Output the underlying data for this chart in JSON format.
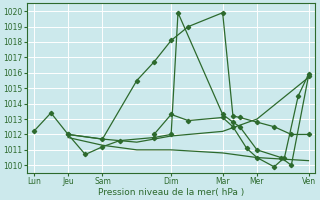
{
  "bg_color": "#cce9ec",
  "grid_color": "#ffffff",
  "line_color": "#2d6a2d",
  "xlabel": "Pression niveau de la mer( hPa )",
  "ylim": [
    1009.5,
    1020.5
  ],
  "yticks": [
    1010,
    1011,
    1012,
    1013,
    1014,
    1015,
    1016,
    1017,
    1018,
    1019,
    1020
  ],
  "xlim": [
    -0.2,
    8.2
  ],
  "day_labels": [
    "Lun",
    "Jeu",
    "Sam",
    "Dim",
    "Mar",
    "Mer",
    "Ven"
  ],
  "day_positions": [
    0.0,
    1.0,
    2.0,
    4.0,
    5.5,
    6.5,
    8.0
  ],
  "lines": [
    {
      "x": [
        0.0,
        0.5,
        1.0,
        2.0,
        3.0,
        3.5,
        4.0,
        4.5,
        5.5,
        5.8,
        6.0,
        6.5,
        7.0,
        7.5,
        8.0
      ],
      "y": [
        1012.2,
        1013.4,
        1012.0,
        1011.7,
        1015.5,
        1016.7,
        1018.1,
        1019.0,
        1019.9,
        1013.2,
        1013.1,
        1012.8,
        1012.5,
        1012.0,
        1012.0
      ],
      "has_markers": true
    },
    {
      "x": [
        1.0,
        1.5,
        2.0,
        2.5,
        3.5,
        4.0,
        4.2,
        5.5,
        5.8,
        6.0,
        6.5,
        7.2,
        7.5,
        8.0
      ],
      "y": [
        1012.0,
        1010.7,
        1011.2,
        1011.6,
        1011.8,
        1012.0,
        1019.9,
        1013.3,
        1012.8,
        1012.5,
        1011.0,
        1010.5,
        1010.0,
        1015.8
      ],
      "has_markers": true
    },
    {
      "x": [
        1.0,
        2.0,
        3.0,
        4.0,
        5.5,
        6.5,
        8.0
      ],
      "y": [
        1012.0,
        1011.7,
        1011.5,
        1011.9,
        1012.2,
        1013.0,
        1015.7
      ],
      "has_markers": false
    },
    {
      "x": [
        1.0,
        2.0,
        3.0,
        4.0,
        5.5,
        6.5,
        8.0
      ],
      "y": [
        1011.8,
        1011.3,
        1011.0,
        1011.0,
        1010.8,
        1010.5,
        1010.3
      ],
      "has_markers": false
    },
    {
      "x": [
        3.5,
        4.0,
        4.5,
        5.5,
        5.8,
        6.2,
        6.5,
        7.0,
        7.3,
        7.7,
        8.0
      ],
      "y": [
        1012.0,
        1013.3,
        1012.9,
        1013.1,
        1012.5,
        1011.1,
        1010.5,
        1009.9,
        1010.5,
        1014.5,
        1015.9
      ],
      "has_markers": true
    }
  ]
}
